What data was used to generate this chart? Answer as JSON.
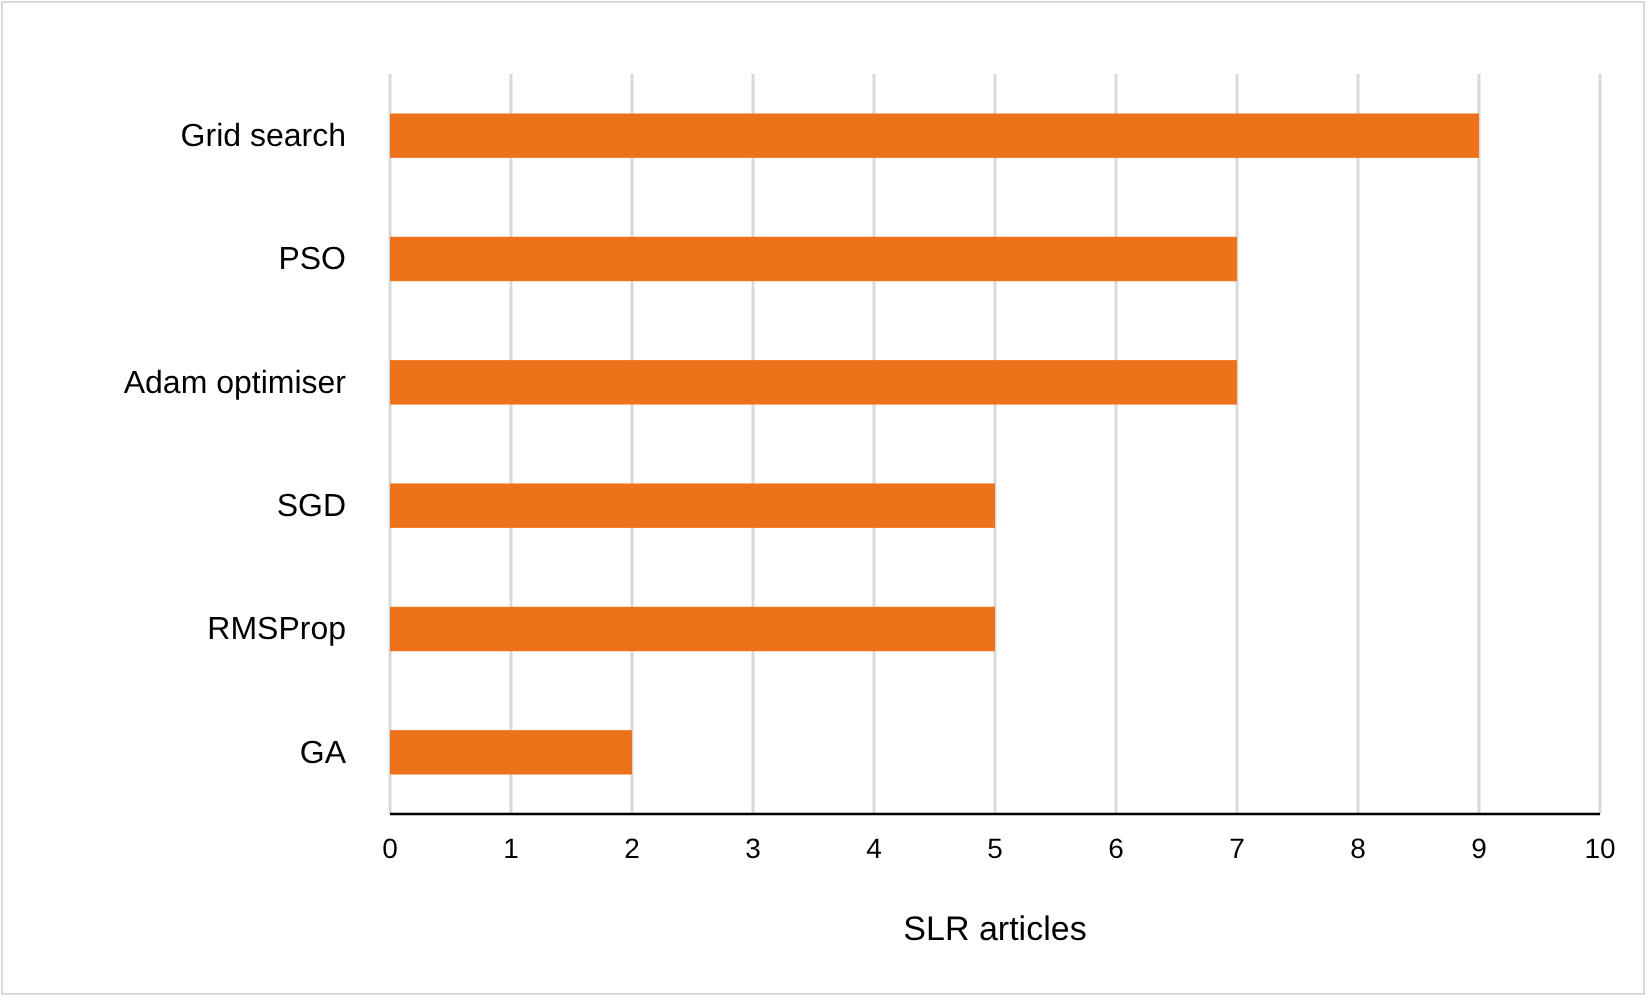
{
  "chart_data": {
    "type": "bar",
    "orientation": "horizontal",
    "xlabel": "SLR articles",
    "categories": [
      "Grid search",
      "PSO",
      "Adam optimiser",
      "SGD",
      "RMSProp",
      "GA"
    ],
    "values": [
      9,
      7,
      7,
      5,
      5,
      2
    ],
    "color": "#ed7219",
    "xlim": [
      0,
      10
    ],
    "xticks": [
      0,
      1,
      2,
      3,
      4,
      5,
      6,
      7,
      8,
      9,
      10
    ],
    "grid": "x"
  }
}
